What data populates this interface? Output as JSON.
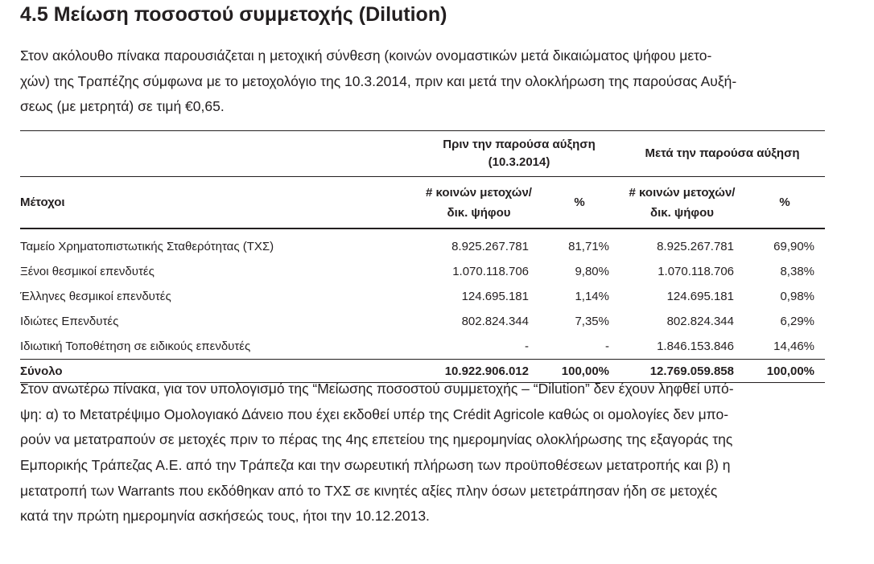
{
  "header": {
    "title": "4.5 Μείωση ποσοστού συμμετοχής (Dilution)"
  },
  "intro": [
    "Στον ακόλουθο πίνακα παρουσιάζεται η μετοχική σύνθεση (κοινών ονομαστικών μετά δικαιώματος ψήφου μετο-",
    "χών) της Τραπέζης σύμφωνα με το μετοχολόγιο της 10.3.2014, πριν και μετά την ολοκλήρωση της παρούσας Αυξή-",
    "σεως (με μετρητά) σε τιμή €0,65."
  ],
  "table": {
    "group_headers": [
      [
        "Πριν την παρούσα αύξηση",
        "(10.3.2014)"
      ],
      [
        "Μετά την παρούσα αύξηση"
      ]
    ],
    "columns": [
      "Μέτοχοι",
      [
        "# κοινών μετοχών/",
        "δικ. ψήφου"
      ],
      "%",
      [
        "# κοινών μετοχών/",
        "δικ. ψήφου"
      ],
      "%"
    ],
    "rows": [
      [
        "Ταμείο Χρηματοπιστωτικής Σταθερότητας (ΤΧΣ)",
        "8.925.267.781",
        "81,71%",
        "8.925.267.781",
        "69,90%"
      ],
      [
        "Ξένοι θεσμικοί επενδυτές",
        "1.070.118.706",
        "9,80%",
        "1.070.118.706",
        "8,38%"
      ],
      [
        "Έλληνες θεσμικοί επενδυτές",
        "124.695.181",
        "1,14%",
        "124.695.181",
        "0,98%"
      ],
      [
        "Ιδιώτες Επενδυτές",
        "802.824.344",
        "7,35%",
        "802.824.344",
        "6,29%"
      ],
      [
        "Ιδιωτική Τοποθέτηση σε ειδικούς επενδυτές",
        "-",
        "-",
        "1.846.153.846",
        "14,46%"
      ]
    ],
    "total": [
      "Σύνολο",
      "10.922.906.012",
      "100,00%",
      "12.769.059.858",
      "100,00%"
    ]
  },
  "outro": [
    "Στον ανωτέρω πίνακα, για τον υπολογισμό της “Μείωσης ποσοστού συμμετοχής – “Dilution” δεν έχουν ληφθεί υπό-",
    "ψη: α) το Μετατρέψιμο Ομολογιακό Δάνειο που έχει εκδοθεί υπέρ της Crédit Agricole καθώς οι ομολογίες δεν μπο-",
    "ρούν να μετατραπούν σε μετοχές πριν το πέρας της 4ης επετείου της ημερομηνίας ολοκλήρωσης της εξαγοράς της",
    "Εμπορικής Τράπεζας Α.Ε. από την Τράπεζα και την σωρευτική πλήρωση των προϋποθέσεων μετατροπής και β) η",
    "μετατροπή των Warrants που εκδόθηκαν από το ΤΧΣ σε κινητές αξίες πλην όσων μετετράπησαν ήδη σε μετοχές",
    "κατά την πρώτη ημερομηνία ασκήσεώς τους, ήτοι την 10.12.2013."
  ]
}
